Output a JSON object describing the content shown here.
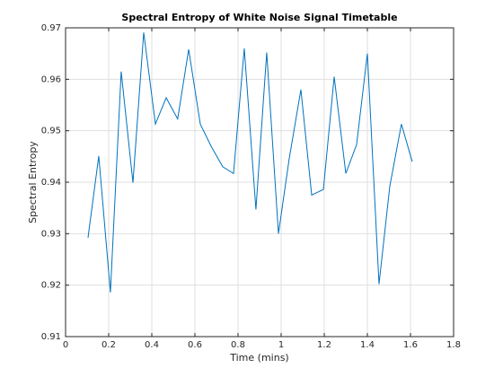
{
  "chart_data": {
    "type": "line",
    "title": "Spectral Entropy of White Noise Signal Timetable",
    "xlabel": "Time (mins)",
    "ylabel": "Spectral Entropy",
    "x": [
      0.104,
      0.154,
      0.208,
      0.258,
      0.3125,
      0.3625,
      0.4167,
      0.4667,
      0.52,
      0.571,
      0.625,
      0.675,
      0.729,
      0.779,
      0.829,
      0.883,
      0.933,
      0.9875,
      1.0375,
      1.0917,
      1.1417,
      1.196,
      1.246,
      1.3,
      1.35,
      1.4,
      1.454,
      1.504,
      1.558,
      1.608
    ],
    "series": [
      {
        "name": "Spectral Entropy",
        "color": "#0072bd",
        "values": [
          0.9292,
          0.9451,
          0.9186,
          0.9615,
          0.9399,
          0.9691,
          0.9513,
          0.9564,
          0.9523,
          0.9658,
          0.9513,
          0.947,
          0.943,
          0.9417,
          0.966,
          0.9347,
          0.9652,
          0.93,
          0.9446,
          0.958,
          0.9375,
          0.9386,
          0.9605,
          0.9417,
          0.9473,
          0.965,
          0.9202,
          0.9392,
          0.9513,
          0.944
        ]
      }
    ],
    "xlim": [
      0,
      1.8
    ],
    "xticks": [
      0,
      0.2,
      0.4,
      0.6,
      0.8,
      1,
      1.2,
      1.4,
      1.6,
      1.8
    ],
    "ylim": [
      0.91,
      0.97
    ],
    "yticks": [
      0.91,
      0.92,
      0.93,
      0.94,
      0.95,
      0.96,
      0.97
    ],
    "grid": true
  }
}
